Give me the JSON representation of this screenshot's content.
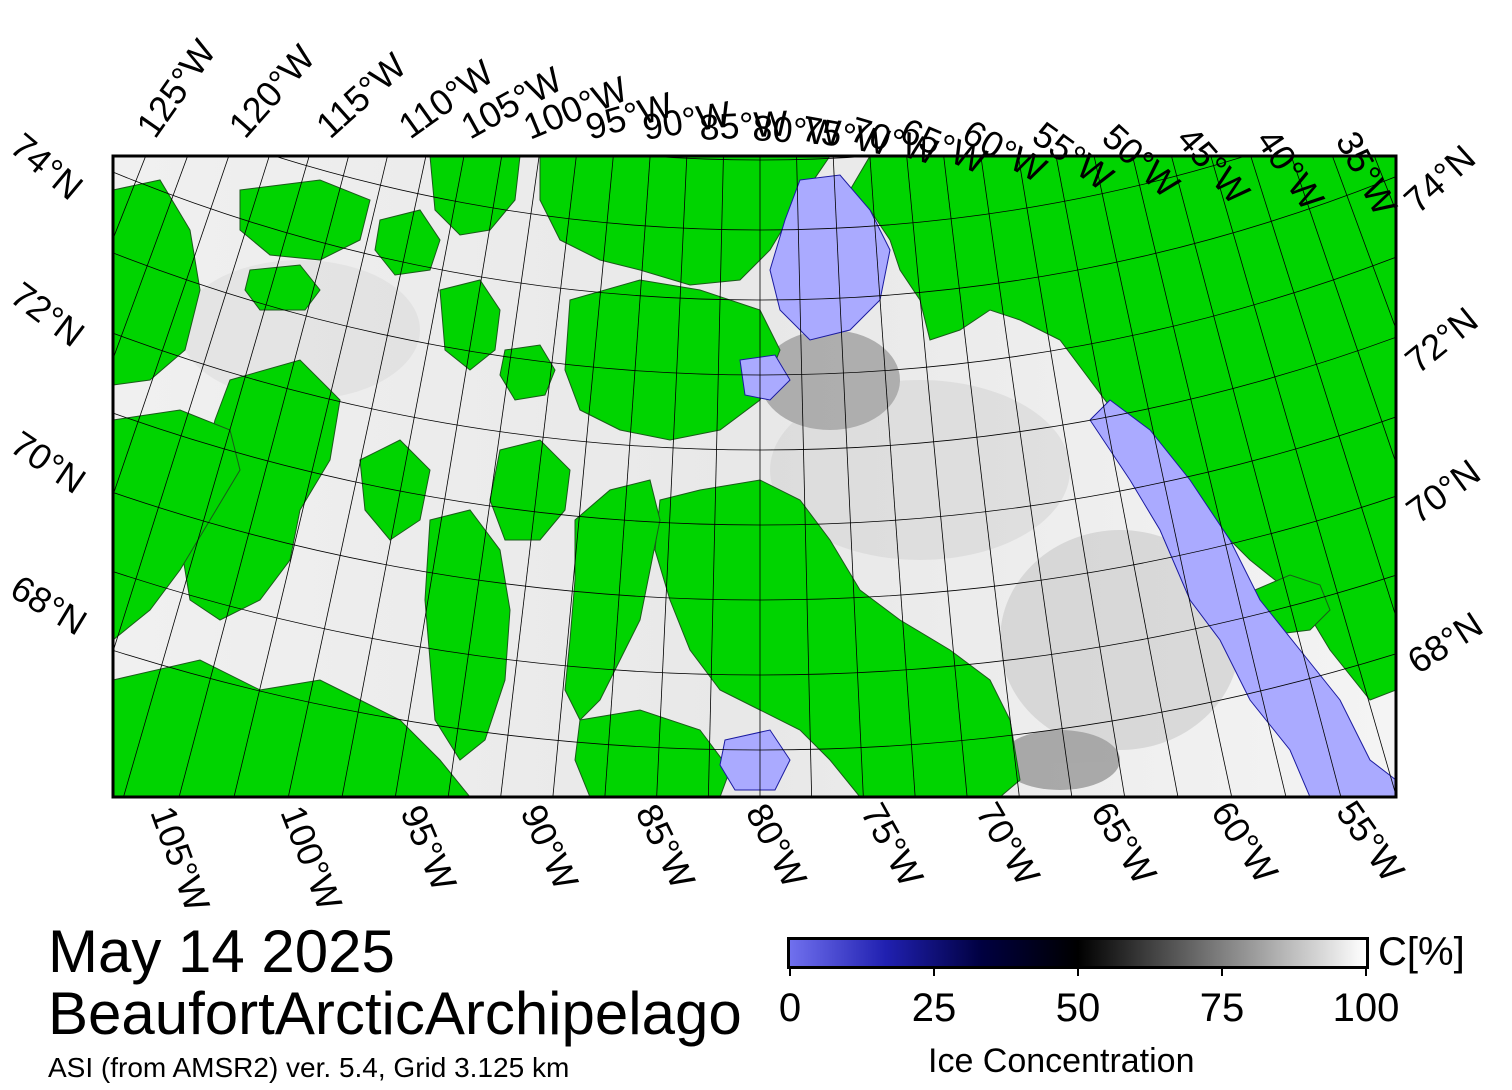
{
  "map": {
    "date": "May 14 2025",
    "region": "BeaufortArcticArchipelago",
    "source": "ASI (from AMSR2) ver. 5.4,  Grid 3.125 km",
    "colors": {
      "land": "#00d400",
      "open_water": "#ffffff",
      "low_ice": "#aaaaff",
      "mid_ice": "#00003a",
      "frame": "#000000"
    },
    "top_labels": [
      "125°W",
      "120°W",
      "115°W",
      "110°W",
      "105°W",
      "100°W",
      "95°W",
      "90°W",
      "85°W",
      "80°W",
      "75°W",
      "70°W",
      "65°W",
      "60°W",
      "55°W",
      "50°W",
      "45°W",
      "40°W",
      "35°W"
    ],
    "bottom_labels": [
      "105°W",
      "100°W",
      "95°W",
      "90°W",
      "85°W",
      "80°W",
      "75°W",
      "70°W",
      "65°W",
      "60°W",
      "55°W"
    ],
    "left_labels": [
      "74°N",
      "72°N",
      "70°N",
      "68°N"
    ],
    "right_labels": [
      "74°N",
      "72°N",
      "70°N",
      "68°N"
    ]
  },
  "colorbar": {
    "unit": "C[%]",
    "title": "Ice Concentration",
    "ticks": [
      "0",
      "25",
      "50",
      "75",
      "100"
    ],
    "gradient": [
      "#7070ee",
      "#2020b0",
      "#000040",
      "#000000",
      "#555555",
      "#aaaaaa",
      "#ffffff"
    ]
  }
}
